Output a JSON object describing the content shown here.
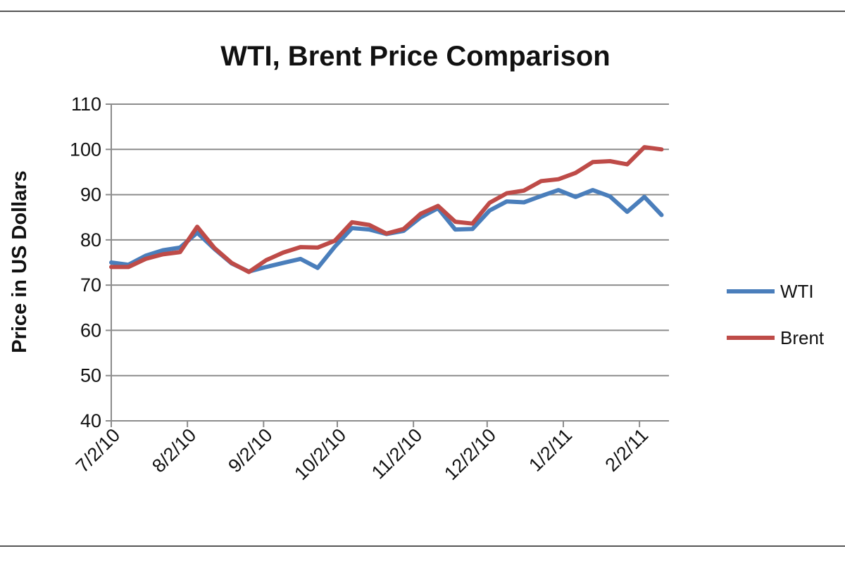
{
  "chart_data": {
    "type": "line",
    "title": "WTI, Brent Price Comparison",
    "xlabel": "",
    "ylabel": "Price in US Dollars",
    "ylim": [
      40,
      110
    ],
    "yticks": [
      40,
      50,
      60,
      70,
      80,
      90,
      100,
      110
    ],
    "xlim": [
      "2010-07-02",
      "2011-02-14"
    ],
    "xtick_labels": [
      "7/2/10",
      "8/2/10",
      "9/2/10",
      "10/2/10",
      "11/2/10",
      "12/2/10",
      "1/2/11",
      "2/2/11"
    ],
    "xtick_dates": [
      "2010-07-02",
      "2010-08-02",
      "2010-09-02",
      "2010-10-02",
      "2010-11-02",
      "2010-12-02",
      "2011-01-02",
      "2011-02-02"
    ],
    "grid": "horizontal",
    "legend_position": "right",
    "series": [
      {
        "name": "WTI",
        "color": "#4a7ebb",
        "x": [
          "2010-07-02",
          "2010-07-09",
          "2010-07-16",
          "2010-07-23",
          "2010-07-30",
          "2010-08-06",
          "2010-08-13",
          "2010-08-20",
          "2010-08-27",
          "2010-09-03",
          "2010-09-10",
          "2010-09-17",
          "2010-09-24",
          "2010-10-01",
          "2010-10-08",
          "2010-10-15",
          "2010-10-22",
          "2010-10-29",
          "2010-11-05",
          "2010-11-12",
          "2010-11-19",
          "2010-11-26",
          "2010-12-03",
          "2010-12-10",
          "2010-12-17",
          "2010-12-24",
          "2010-12-31",
          "2011-01-07",
          "2011-01-14",
          "2011-01-21",
          "2011-01-28",
          "2011-02-04",
          "2011-02-11"
        ],
        "values": [
          75.0,
          74.5,
          76.5,
          77.7,
          78.3,
          81.6,
          78.0,
          74.8,
          73.0,
          74.0,
          74.9,
          75.8,
          73.8,
          78.5,
          82.6,
          82.3,
          81.3,
          82.0,
          85.0,
          87.0,
          82.3,
          82.4,
          86.5,
          88.5,
          88.3,
          89.7,
          91.0,
          89.5,
          91.0,
          89.6,
          86.2,
          89.5,
          85.5
        ]
      },
      {
        "name": "Brent",
        "color": "#be4b48",
        "x": [
          "2010-07-02",
          "2010-07-09",
          "2010-07-16",
          "2010-07-23",
          "2010-07-30",
          "2010-08-06",
          "2010-08-13",
          "2010-08-20",
          "2010-08-27",
          "2010-09-03",
          "2010-09-10",
          "2010-09-17",
          "2010-09-24",
          "2010-10-01",
          "2010-10-08",
          "2010-10-15",
          "2010-10-22",
          "2010-10-29",
          "2010-11-05",
          "2010-11-12",
          "2010-11-19",
          "2010-11-26",
          "2010-12-03",
          "2010-12-10",
          "2010-12-17",
          "2010-12-24",
          "2010-12-31",
          "2011-01-07",
          "2011-01-14",
          "2011-01-21",
          "2011-01-28",
          "2011-02-04",
          "2011-02-11"
        ],
        "values": [
          74.0,
          74.0,
          75.8,
          76.8,
          77.3,
          82.9,
          78.2,
          74.9,
          72.9,
          75.5,
          77.2,
          78.4,
          78.3,
          79.8,
          83.9,
          83.3,
          81.4,
          82.4,
          85.8,
          87.5,
          84.0,
          83.6,
          88.2,
          90.3,
          90.9,
          93.0,
          93.4,
          94.8,
          97.2,
          97.4,
          96.7,
          100.5,
          100.0
        ]
      }
    ]
  }
}
